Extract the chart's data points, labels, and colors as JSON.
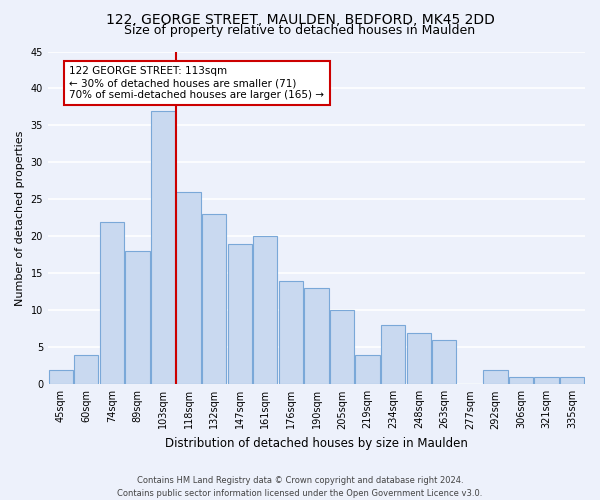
{
  "title1": "122, GEORGE STREET, MAULDEN, BEDFORD, MK45 2DD",
  "title2": "Size of property relative to detached houses in Maulden",
  "xlabel": "Distribution of detached houses by size in Maulden",
  "ylabel": "Number of detached properties",
  "categories": [
    "45sqm",
    "60sqm",
    "74sqm",
    "89sqm",
    "103sqm",
    "118sqm",
    "132sqm",
    "147sqm",
    "161sqm",
    "176sqm",
    "190sqm",
    "205sqm",
    "219sqm",
    "234sqm",
    "248sqm",
    "263sqm",
    "277sqm",
    "292sqm",
    "306sqm",
    "321sqm",
    "335sqm"
  ],
  "values": [
    2,
    4,
    22,
    18,
    37,
    26,
    23,
    19,
    20,
    14,
    13,
    10,
    4,
    8,
    7,
    6,
    0,
    2,
    1,
    1,
    1
  ],
  "bar_color": "#c9d9f0",
  "bar_edge_color": "#7aa8d8",
  "red_line_index": 5,
  "annotation_text": "122 GEORGE STREET: 113sqm\n← 30% of detached houses are smaller (71)\n70% of semi-detached houses are larger (165) →",
  "annotation_box_color": "#ffffff",
  "annotation_box_edge": "#cc0000",
  "ylim": [
    0,
    45
  ],
  "yticks": [
    0,
    5,
    10,
    15,
    20,
    25,
    30,
    35,
    40,
    45
  ],
  "footer_line1": "Contains HM Land Registry data © Crown copyright and database right 2024.",
  "footer_line2": "Contains public sector information licensed under the Open Government Licence v3.0.",
  "bg_color": "#edf1fb",
  "grid_color": "#ffffff",
  "title1_fontsize": 10,
  "title2_fontsize": 9,
  "xlabel_fontsize": 8.5,
  "ylabel_fontsize": 8,
  "annot_fontsize": 7.5,
  "footer_fontsize": 6,
  "tick_fontsize": 7
}
